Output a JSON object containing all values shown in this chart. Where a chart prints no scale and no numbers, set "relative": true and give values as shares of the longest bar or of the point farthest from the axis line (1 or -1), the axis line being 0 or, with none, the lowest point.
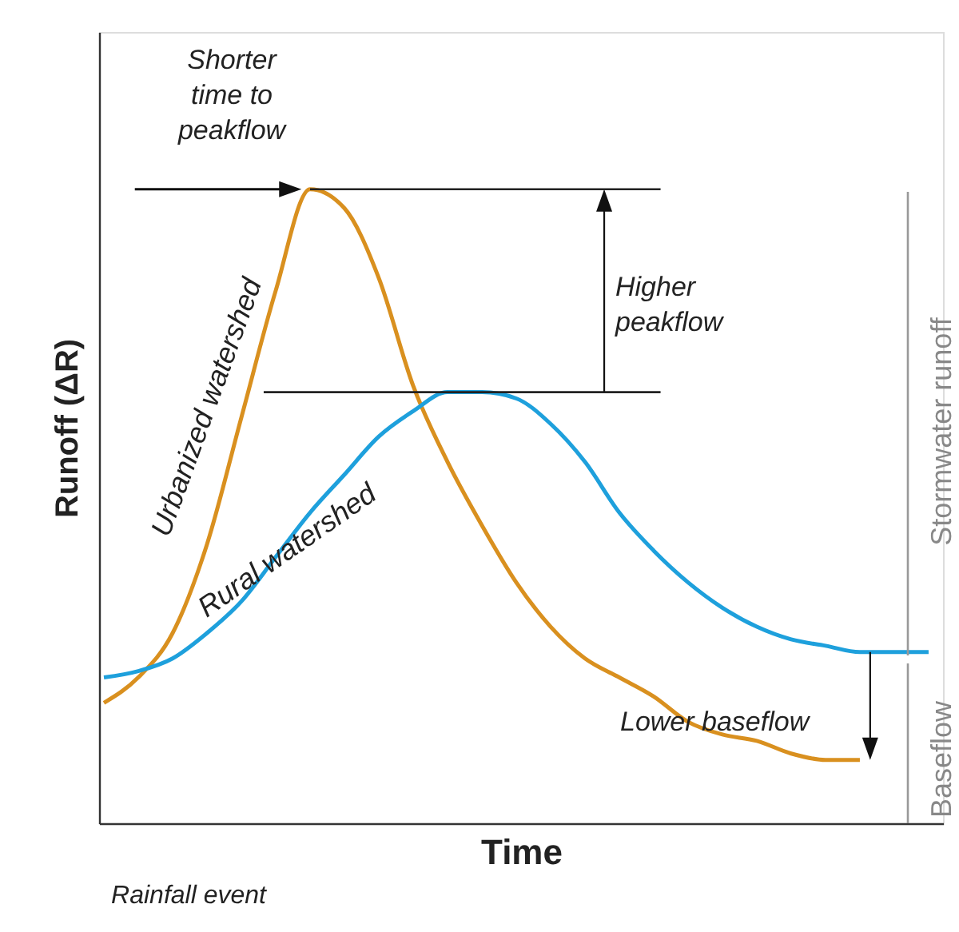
{
  "chart_data": {
    "type": "line",
    "relative": true,
    "xlabel": "Time",
    "ylabel": "Runoff (ΔR)",
    "categories": [
      null,
      null,
      null,
      null,
      null,
      null,
      null,
      null,
      null,
      null,
      null,
      null,
      null,
      null,
      null,
      null,
      null,
      null,
      null,
      null,
      null,
      null,
      null,
      null,
      null
    ],
    "series": [
      {
        "name": "Urbanized watershed",
        "color": "#d9901f",
        "values": [
          0.19,
          0.23,
          0.3,
          0.44,
          0.64,
          0.84,
          1.0,
          0.97,
          0.86,
          0.69,
          0.57,
          0.47,
          0.38,
          0.31,
          0.26,
          0.23,
          0.2,
          0.16,
          0.14,
          0.13,
          0.11,
          0.1,
          0.1,
          null,
          null
        ]
      },
      {
        "name": "Rural watershed",
        "color": "#1ea0dc",
        "values": [
          0.23,
          0.24,
          0.26,
          0.3,
          0.35,
          0.42,
          0.49,
          0.55,
          0.61,
          0.65,
          0.68,
          0.68,
          0.67,
          0.63,
          0.57,
          0.49,
          0.43,
          0.38,
          0.34,
          0.31,
          0.29,
          0.28,
          0.27,
          0.27,
          0.27
        ]
      }
    ],
    "ref_lines": [
      {
        "axis": "y",
        "value": 1.0,
        "color": "#222222"
      },
      {
        "axis": "y",
        "value": 0.68,
        "color": "#222222"
      }
    ],
    "annotations": [
      "Shorter time to peakflow",
      "Higher peakflow",
      "Lower baseflow",
      "Stormwater runoff",
      "Baseflow",
      "Rainfall event"
    ],
    "grid": false,
    "legend": false,
    "marker": "none",
    "line_style": "solid",
    "tick_labels": false
  }
}
